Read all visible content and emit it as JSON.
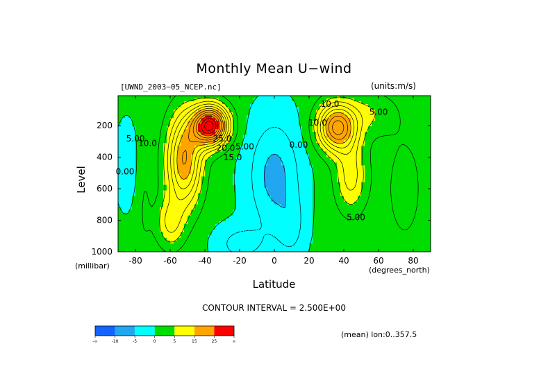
{
  "chart_data": {
    "type": "heatmap",
    "title": "Monthly Mean U−wind",
    "dataset_label": "[UWND_2003−05_NCEP.nc]",
    "units_label": "(units:m/s)",
    "xlabel": "Latitude",
    "xlabel_units": "(degrees_north)",
    "ylabel": "Level",
    "ylabel_units": "(millibar)",
    "xlim": [
      -90,
      90
    ],
    "ylim": [
      1000,
      10
    ],
    "x_ticks": [
      "-80",
      "-60",
      "-40",
      "-20",
      "0",
      "20",
      "40",
      "60",
      "80"
    ],
    "x_tick_values": [
      -80,
      -60,
      -40,
      -20,
      0,
      20,
      40,
      60,
      80
    ],
    "y_ticks": [
      "200",
      "400",
      "600",
      "800",
      "1000"
    ],
    "y_tick_values": [
      200,
      400,
      600,
      800,
      1000
    ],
    "contour_interval_text": "CONTOUR INTERVAL = 2.500E+00",
    "mean_info": "(mean) lon:0..357.5",
    "features": [
      {
        "kind": "max",
        "lat": -33,
        "level": 200,
        "value": 32
      },
      {
        "kind": "max",
        "lat": 37,
        "level": 200,
        "value": 22
      },
      {
        "kind": "min",
        "lat": 0,
        "level": 500,
        "value": -5
      }
    ],
    "contour_labels": [
      {
        "text": "5.00",
        "lat": -80,
        "level": 300
      },
      {
        "text": "10.0",
        "lat": -73,
        "level": 330
      },
      {
        "text": "0.00",
        "lat": -86,
        "level": 510
      },
      {
        "text": "25.0",
        "lat": -30,
        "level": 300
      },
      {
        "text": "20.0",
        "lat": -28,
        "level": 360
      },
      {
        "text": "15.0",
        "lat": -24,
        "level": 420
      },
      {
        "text": "5.00",
        "lat": -17,
        "level": 350
      },
      {
        "text": "0.00",
        "lat": 14,
        "level": 340
      },
      {
        "text": "10.0",
        "lat": 25,
        "level": 200
      },
      {
        "text": "5.00",
        "lat": 60,
        "level": 130
      },
      {
        "text": "10.0",
        "lat": 32,
        "level": 80
      },
      {
        "text": "5.00",
        "lat": 47,
        "level": 800
      }
    ],
    "colorbar": {
      "colors": [
        "#1463ff",
        "#21a6f0",
        "#00ffff",
        "#00dd00",
        "#ffff00",
        "#ffa500",
        "#ff0000"
      ],
      "labels": [
        "-∞",
        "-10",
        "-5",
        "0",
        "5",
        "15",
        "25",
        "∞"
      ]
    }
  }
}
